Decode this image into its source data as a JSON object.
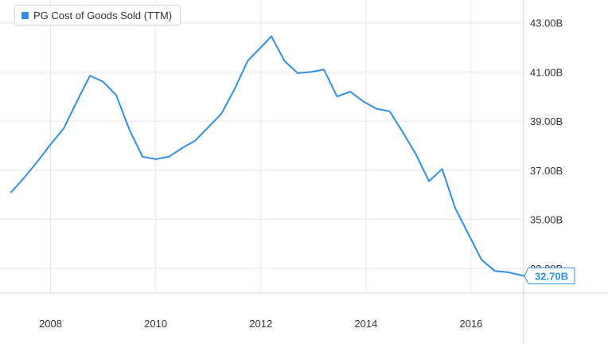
{
  "chart_data": {
    "type": "line",
    "title": "",
    "xlabel": "",
    "ylabel": "",
    "series": [
      {
        "name": "PG Cost of Goods Sold (TTM)",
        "color": "#2f8fe6",
        "points": [
          [
            2007.25,
            36.1
          ],
          [
            2007.5,
            36.7
          ],
          [
            2007.75,
            37.35
          ],
          [
            2008.0,
            38.05
          ],
          [
            2008.25,
            38.7
          ],
          [
            2008.5,
            39.8
          ],
          [
            2008.75,
            40.85
          ],
          [
            2009.0,
            40.6
          ],
          [
            2009.25,
            40.05
          ],
          [
            2009.5,
            38.65
          ],
          [
            2009.75,
            37.55
          ],
          [
            2010.0,
            37.45
          ],
          [
            2010.25,
            37.55
          ],
          [
            2010.5,
            37.9
          ],
          [
            2010.75,
            38.2
          ],
          [
            2011.0,
            38.75
          ],
          [
            2011.25,
            39.3
          ],
          [
            2011.5,
            40.3
          ],
          [
            2011.75,
            41.45
          ],
          [
            2012.0,
            42.0
          ],
          [
            2012.2,
            42.45
          ],
          [
            2012.45,
            41.45
          ],
          [
            2012.7,
            40.95
          ],
          [
            2012.95,
            41.0
          ],
          [
            2013.2,
            41.1
          ],
          [
            2013.45,
            40.0
          ],
          [
            2013.7,
            40.2
          ],
          [
            2013.95,
            39.8
          ],
          [
            2014.2,
            39.5
          ],
          [
            2014.45,
            39.4
          ],
          [
            2014.7,
            38.55
          ],
          [
            2014.95,
            37.65
          ],
          [
            2015.2,
            36.55
          ],
          [
            2015.45,
            37.05
          ],
          [
            2015.7,
            35.45
          ],
          [
            2015.95,
            34.4
          ],
          [
            2016.2,
            33.35
          ],
          [
            2016.45,
            32.9
          ],
          [
            2016.7,
            32.85
          ],
          [
            2017.0,
            32.7
          ]
        ]
      }
    ],
    "xlim": [
      2007.25,
      2017.0
    ],
    "ylim": [
      32.0,
      43.8
    ],
    "x_ticks": [
      2008,
      2010,
      2012,
      2014,
      2016
    ],
    "y_ticks": [
      33,
      35,
      37,
      39,
      41,
      43
    ],
    "x_tick_labels": [
      "2008",
      "2010",
      "2012",
      "2014",
      "2016"
    ],
    "y_tick_labels": [
      "33.00B",
      "35.00B",
      "37.00B",
      "39.00B",
      "41.00B",
      "43.00B"
    ],
    "last_value_label": "32.70B",
    "grid": true,
    "legend_position": "top-left",
    "axis_side": "right"
  }
}
